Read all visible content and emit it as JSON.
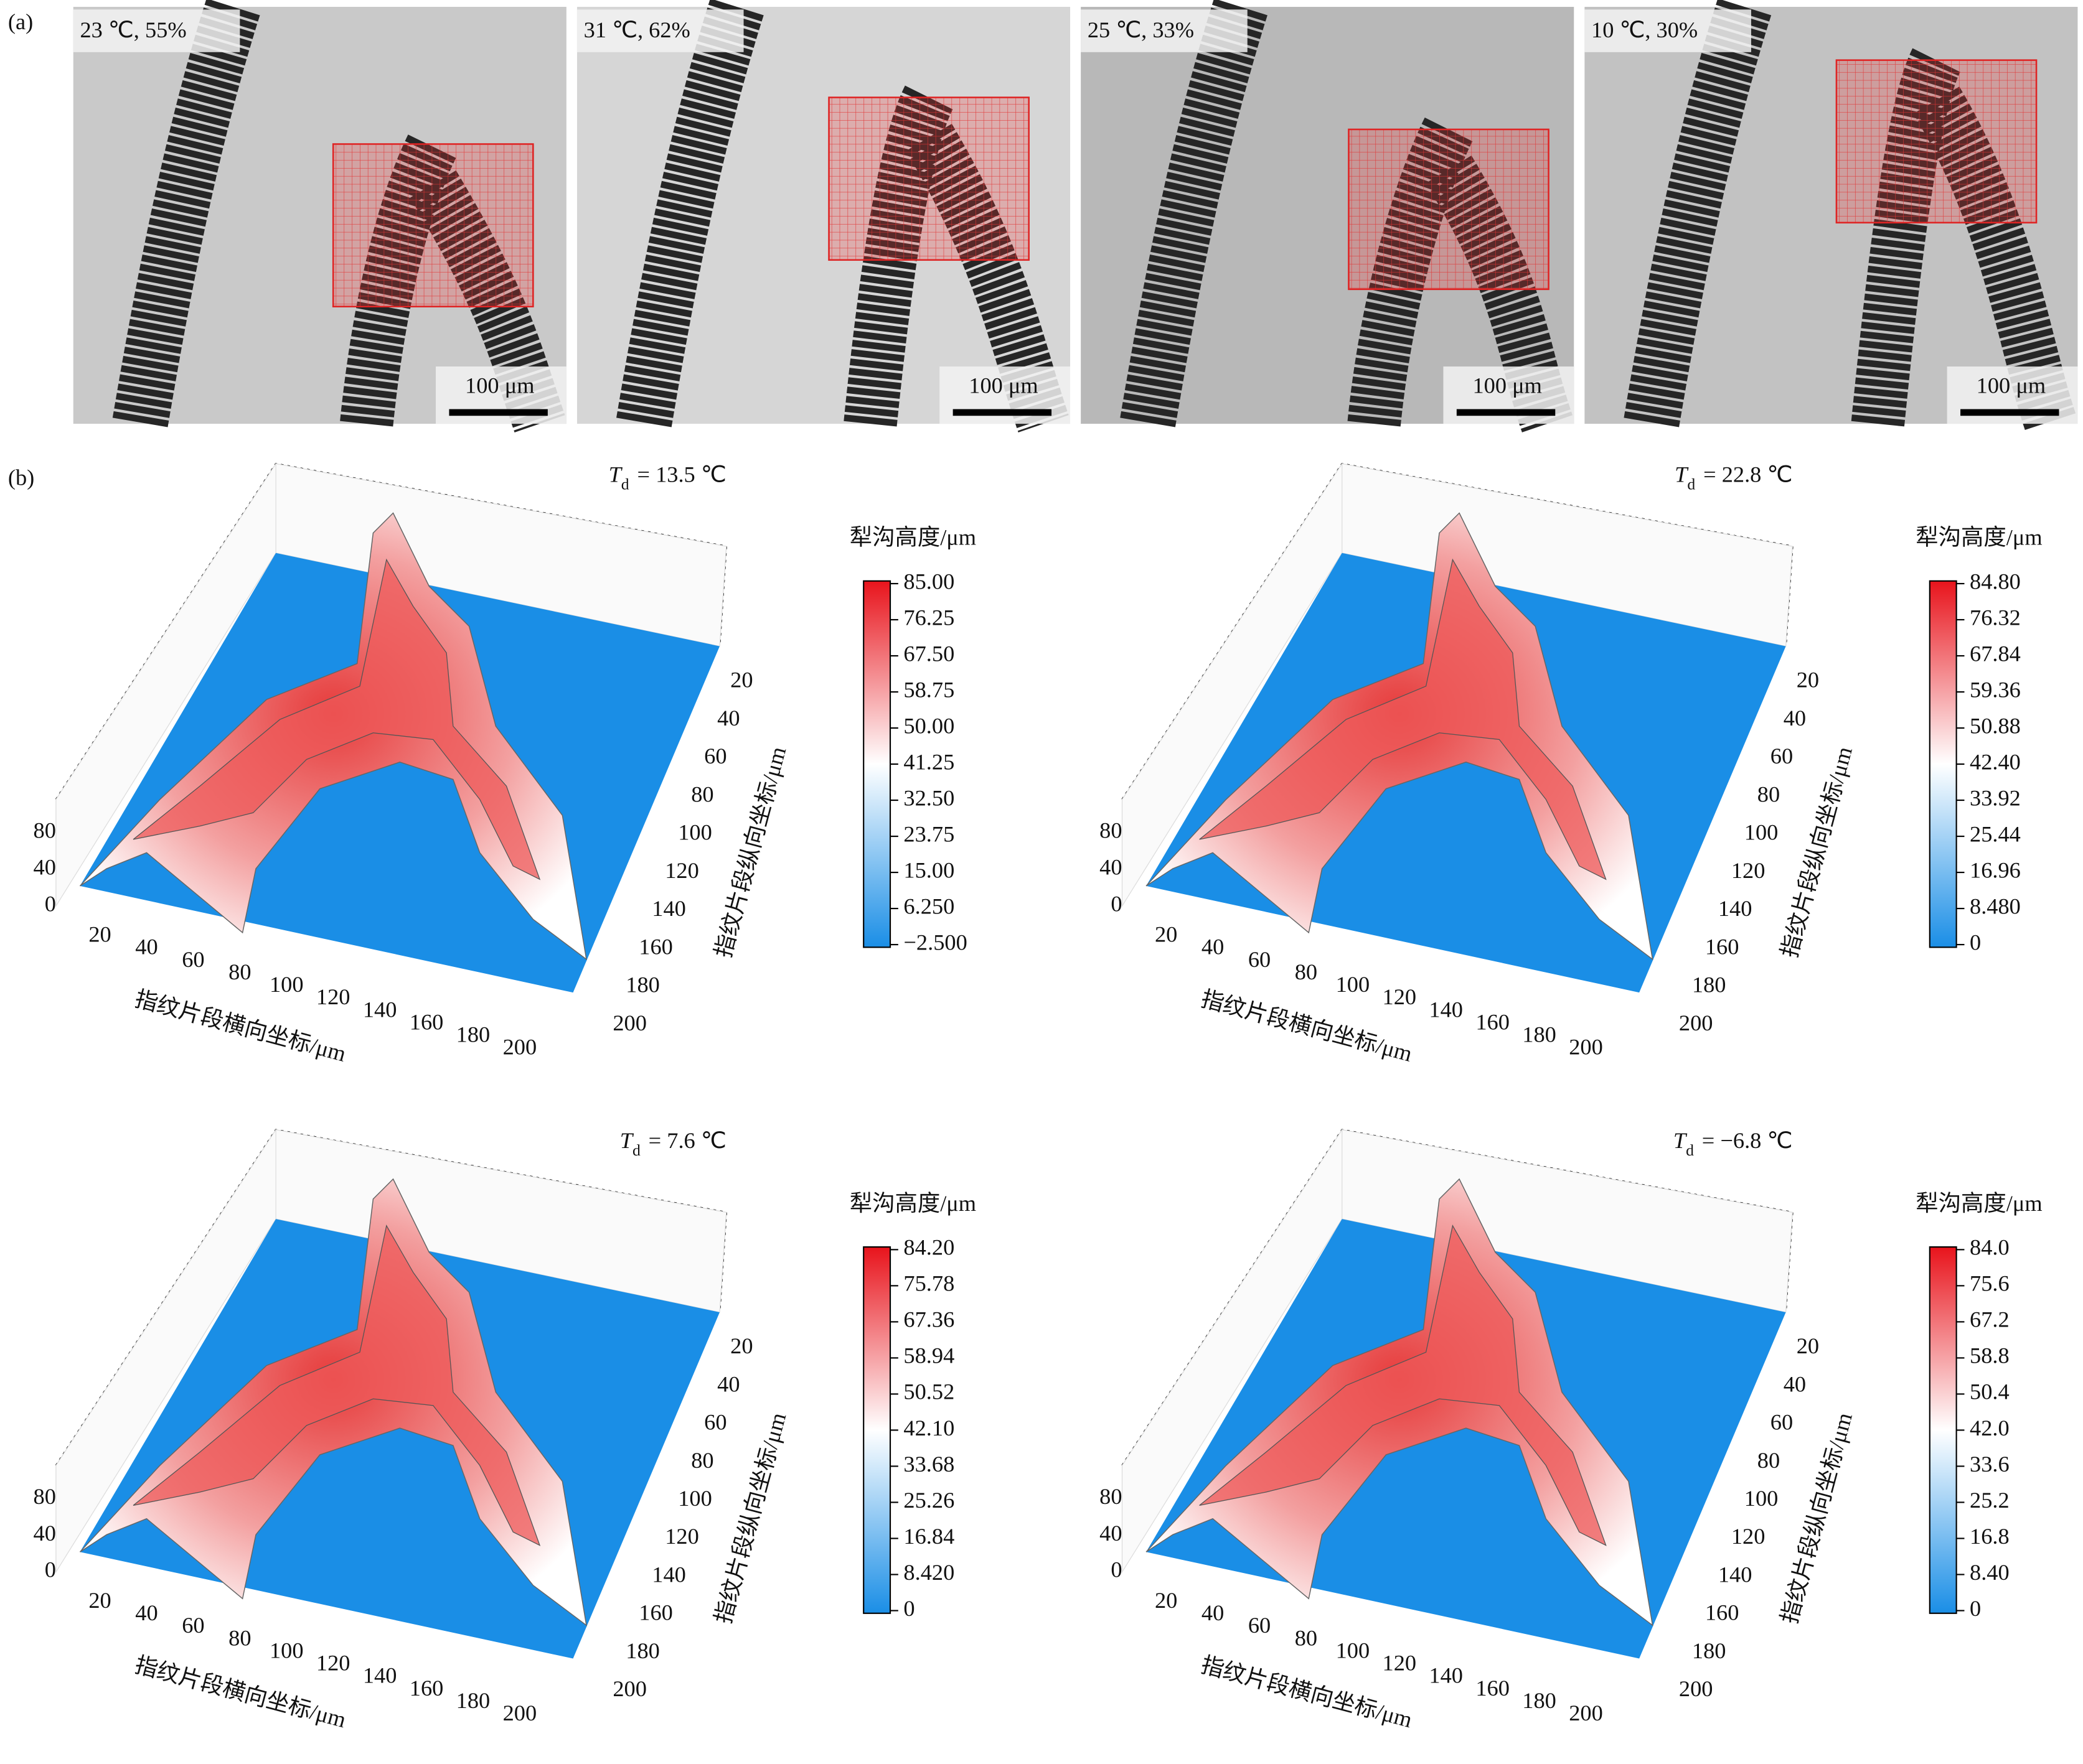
{
  "panel_a": {
    "tag": "(a)",
    "images": [
      {
        "label": "23 ℃, 55%",
        "scale": "100 μm"
      },
      {
        "label": "31 ℃, 62%",
        "scale": "100 μm"
      },
      {
        "label": "25 ℃, 33%",
        "scale": "100 μm"
      },
      {
        "label": "10 ℃, 30%",
        "scale": "100 μm"
      }
    ]
  },
  "panel_b": {
    "tag": "(b)",
    "x_label": "指纹片段横向坐标/μm",
    "y_label": "指纹片段纵向坐标/μm",
    "colorbar_label": "犁沟高度/μm",
    "x_ticks": [
      20,
      40,
      60,
      80,
      100,
      120,
      140,
      160,
      180,
      200
    ],
    "y_ticks": [
      20,
      40,
      60,
      80,
      100,
      120,
      140,
      160,
      180,
      200
    ],
    "z_ticks": [
      0,
      40,
      80
    ],
    "plots": [
      {
        "title": {
          "var": "T",
          "sub": "d",
          "rest": "= 13.5 ℃"
        },
        "colorbar_ticks": [
          "85.00",
          "76.25",
          "67.50",
          "58.75",
          "50.00",
          "41.25",
          "32.50",
          "23.75",
          "15.00",
          "6.250",
          "−2.500"
        ]
      },
      {
        "title": {
          "var": "T",
          "sub": "d",
          "rest": "= 22.8 ℃"
        },
        "colorbar_ticks": [
          "84.80",
          "76.32",
          "67.84",
          "59.36",
          "50.88",
          "42.40",
          "33.92",
          "25.44",
          "16.96",
          "8.480",
          "0"
        ]
      },
      {
        "title": {
          "var": "T",
          "sub": "d",
          "rest": "= 7.6 ℃"
        },
        "colorbar_ticks": [
          "84.20",
          "75.78",
          "67.36",
          "58.94",
          "50.52",
          "42.10",
          "33.68",
          "25.26",
          "16.84",
          "8.420",
          "0"
        ]
      },
      {
        "title": {
          "var": "T",
          "sub": "d",
          "rest": "= −6.8 ℃"
        },
        "colorbar_ticks": [
          "84.0",
          "75.6",
          "67.2",
          "58.8",
          "50.4",
          "42.0",
          "33.6",
          "25.2",
          "16.8",
          "8.40",
          "0"
        ]
      }
    ]
  }
}
